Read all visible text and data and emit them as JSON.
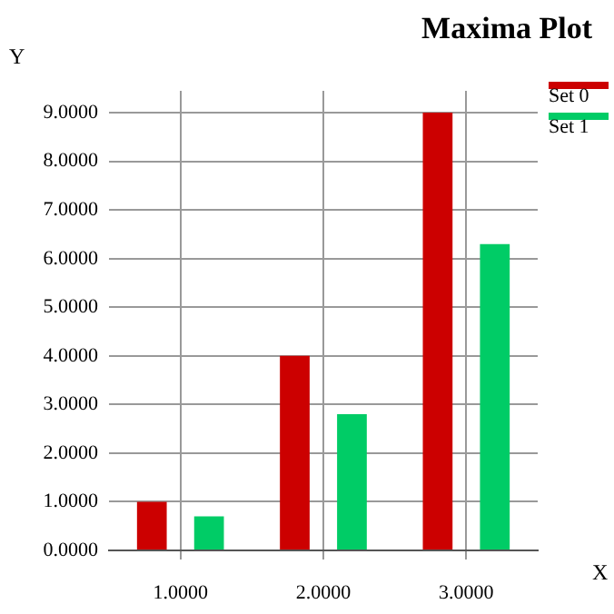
{
  "chart_data": {
    "type": "bar",
    "title": "Maxima Plot",
    "xlabel": "X",
    "ylabel": "Y",
    "x": [
      1,
      2,
      3
    ],
    "series": [
      {
        "name": "Set 0",
        "color": "#cc0000",
        "values": [
          1,
          4,
          9
        ]
      },
      {
        "name": "Set 1",
        "color": "#00cc66",
        "values": [
          0.7,
          2.8,
          6.3
        ]
      }
    ],
    "xlim": [
      0.5,
      3.5
    ],
    "xticks": [
      {
        "value": 1,
        "label": "1.0000"
      },
      {
        "value": 2,
        "label": "2.0000"
      },
      {
        "value": 3,
        "label": "3.0000"
      }
    ],
    "ylim": [
      0,
      9.45
    ],
    "yticks": [
      {
        "value": 0,
        "label": "0.0000"
      },
      {
        "value": 1,
        "label": "1.0000"
      },
      {
        "value": 2,
        "label": "2.0000"
      },
      {
        "value": 3,
        "label": "3.0000"
      },
      {
        "value": 4,
        "label": "4.0000"
      },
      {
        "value": 5,
        "label": "5.0000"
      },
      {
        "value": 6,
        "label": "6.0000"
      },
      {
        "value": 7,
        "label": "7.0000"
      },
      {
        "value": 8,
        "label": "8.0000"
      },
      {
        "value": 9,
        "label": "9.0000"
      }
    ],
    "grid": true,
    "legend": "top right"
  }
}
